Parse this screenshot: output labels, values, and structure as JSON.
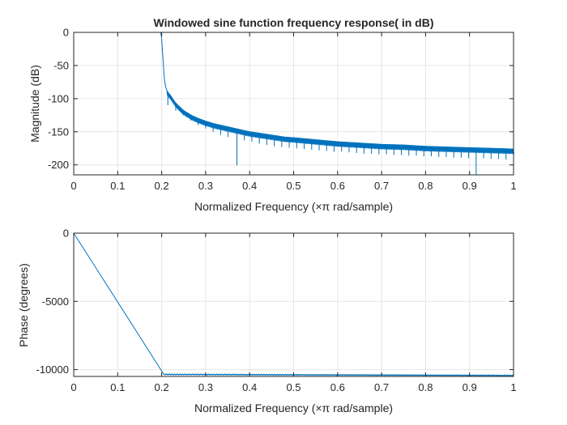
{
  "chart_data": [
    {
      "type": "line",
      "title": "Windowed sine function frequency response( in dB)",
      "xlabel": "Normalized Frequency  (×π rad/sample)",
      "ylabel": "Magnitude (dB)",
      "xlim": [
        0,
        1
      ],
      "ylim": [
        -215,
        0
      ],
      "xticks": [
        0,
        0.1,
        0.2,
        0.3,
        0.4,
        0.5,
        0.6,
        0.7,
        0.8,
        0.9,
        1
      ],
      "xtick_labels": [
        "0",
        "0.1",
        "0.2",
        "0.3",
        "0.4",
        "0.5",
        "0.6",
        "0.7",
        "0.8",
        "0.9",
        "1"
      ],
      "yticks": [
        0,
        -50,
        -100,
        -150,
        -200
      ],
      "ytick_labels": [
        "0",
        "-50",
        "-100",
        "-150",
        "-200"
      ],
      "grid": true,
      "legend": "none",
      "series": [
        {
          "color": "#0072bd",
          "x": [
            0,
            0.19,
            0.198,
            0.2,
            0.203,
            0.206,
            0.209,
            0.212,
            0.216,
            0.22,
            0.225,
            0.23,
            0.24,
            0.25,
            0.26,
            0.27,
            0.28,
            0.3,
            0.32,
            0.34,
            0.36,
            0.38,
            0.4,
            0.42,
            0.45,
            0.48,
            0.5,
            0.55,
            0.6,
            0.65,
            0.7,
            0.75,
            0.8,
            0.85,
            0.9,
            0.95,
            1
          ],
          "y": [
            0,
            0,
            0,
            -10,
            -40,
            -70,
            -82,
            -88,
            -92,
            -95,
            -100,
            -105,
            -112,
            -118,
            -122,
            -126,
            -129,
            -134,
            -138,
            -141,
            -144,
            -147,
            -150,
            -152,
            -155,
            -158,
            -159,
            -162,
            -165,
            -167,
            -169,
            -170,
            -172,
            -173,
            -174,
            -175,
            -176
          ]
        }
      ],
      "notches": {
        "x": [
          0.214,
          0.232,
          0.249,
          0.266,
          0.283,
          0.3,
          0.317,
          0.334,
          0.351,
          0.371,
          0.388,
          0.405,
          0.422,
          0.439,
          0.456,
          0.473,
          0.49,
          0.507,
          0.524,
          0.541,
          0.558,
          0.575,
          0.592,
          0.609,
          0.626,
          0.643,
          0.66,
          0.677,
          0.694,
          0.711,
          0.728,
          0.745,
          0.762,
          0.779,
          0.796,
          0.813,
          0.83,
          0.847,
          0.864,
          0.881,
          0.898,
          0.915,
          0.932,
          0.949,
          0.966,
          0.983
        ],
        "y": [
          -110,
          -118,
          -125,
          -133,
          -140,
          -145,
          -150,
          -155,
          -158,
          -201,
          -163,
          -165,
          -168,
          -170,
          -172,
          -173,
          -174,
          -175,
          -176,
          -177,
          -178,
          -179,
          -180,
          -180,
          -181,
          -182,
          -183,
          -183,
          -184,
          -184,
          -185,
          -185,
          -186,
          -186,
          -187,
          -187,
          -188,
          -188,
          -189,
          -189,
          -190,
          -215,
          -190,
          -191,
          -191,
          -192
        ]
      }
    },
    {
      "type": "line",
      "title": "",
      "xlabel": "Normalized Frequency  (×π rad/sample)",
      "ylabel": "Phase (degrees)",
      "xlim": [
        0,
        1
      ],
      "ylim": [
        -10500,
        0
      ],
      "xticks": [
        0,
        0.1,
        0.2,
        0.3,
        0.4,
        0.5,
        0.6,
        0.7,
        0.8,
        0.9,
        1
      ],
      "xtick_labels": [
        "0",
        "0.1",
        "0.2",
        "0.3",
        "0.4",
        "0.5",
        "0.6",
        "0.7",
        "0.8",
        "0.9",
        "1"
      ],
      "yticks": [
        0,
        -5000,
        -10000
      ],
      "ytick_labels": [
        "0",
        "-5000",
        "-10000"
      ],
      "grid": true,
      "legend": "none",
      "series": [
        {
          "color": "#0072bd",
          "x": [
            0,
            0.205,
            1
          ],
          "y": [
            0,
            -10350,
            -10430
          ]
        }
      ]
    }
  ]
}
